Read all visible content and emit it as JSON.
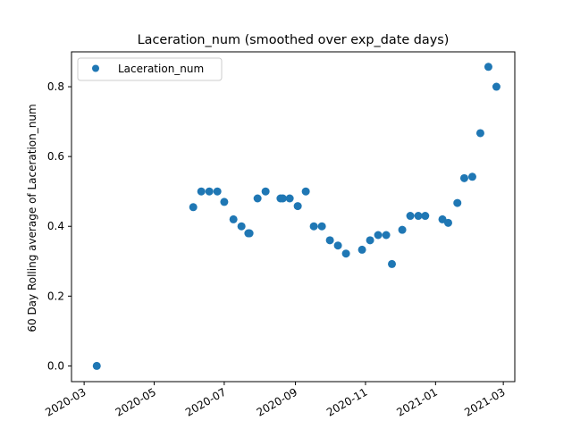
{
  "chart_data": {
    "type": "scatter",
    "title": "Laceration_num (smoothed over exp_date days)",
    "xlabel": "",
    "ylabel": "60 Day Rolling average of Laceration_num",
    "x_ticks": [
      "2020-03",
      "2020-05",
      "2020-07",
      "2020-09",
      "2020-11",
      "2021-01",
      "2021-03"
    ],
    "y_ticks": [
      "0.0",
      "0.2",
      "0.4",
      "0.6",
      "0.8"
    ],
    "xlim": [
      "2020-02-19",
      "2021-03-11"
    ],
    "ylim": [
      -0.045,
      0.9
    ],
    "grid": false,
    "legend_position": "upper-left",
    "color": "#1f77b4",
    "series": [
      {
        "name": "Laceration_num",
        "points": [
          {
            "x": "2020-03-12",
            "y": 0.0
          },
          {
            "x": "2020-06-04",
            "y": 0.455
          },
          {
            "x": "2020-06-11",
            "y": 0.5
          },
          {
            "x": "2020-06-18",
            "y": 0.5
          },
          {
            "x": "2020-06-25",
            "y": 0.5
          },
          {
            "x": "2020-07-01",
            "y": 0.47
          },
          {
            "x": "2020-07-09",
            "y": 0.42
          },
          {
            "x": "2020-07-16",
            "y": 0.4
          },
          {
            "x": "2020-07-22",
            "y": 0.38
          },
          {
            "x": "2020-07-23",
            "y": 0.38
          },
          {
            "x": "2020-07-30",
            "y": 0.48
          },
          {
            "x": "2020-08-06",
            "y": 0.5
          },
          {
            "x": "2020-08-19",
            "y": 0.48
          },
          {
            "x": "2020-08-21",
            "y": 0.48
          },
          {
            "x": "2020-08-27",
            "y": 0.48
          },
          {
            "x": "2020-09-03",
            "y": 0.458
          },
          {
            "x": "2020-09-10",
            "y": 0.5
          },
          {
            "x": "2020-09-17",
            "y": 0.4
          },
          {
            "x": "2020-09-24",
            "y": 0.4
          },
          {
            "x": "2020-10-01",
            "y": 0.36
          },
          {
            "x": "2020-10-08",
            "y": 0.345
          },
          {
            "x": "2020-10-15",
            "y": 0.322
          },
          {
            "x": "2020-10-29",
            "y": 0.333
          },
          {
            "x": "2020-11-05",
            "y": 0.36
          },
          {
            "x": "2020-11-12",
            "y": 0.375
          },
          {
            "x": "2020-11-19",
            "y": 0.375
          },
          {
            "x": "2020-11-24",
            "y": 0.292
          },
          {
            "x": "2020-12-03",
            "y": 0.39
          },
          {
            "x": "2020-12-10",
            "y": 0.43
          },
          {
            "x": "2020-12-17",
            "y": 0.43
          },
          {
            "x": "2020-12-23",
            "y": 0.43
          },
          {
            "x": "2021-01-07",
            "y": 0.42
          },
          {
            "x": "2021-01-12",
            "y": 0.41
          },
          {
            "x": "2021-01-20",
            "y": 0.467
          },
          {
            "x": "2021-01-26",
            "y": 0.538
          },
          {
            "x": "2021-02-02",
            "y": 0.542
          },
          {
            "x": "2021-02-09",
            "y": 0.667
          },
          {
            "x": "2021-02-16",
            "y": 0.857
          },
          {
            "x": "2021-02-23",
            "y": 0.8
          }
        ]
      }
    ]
  }
}
